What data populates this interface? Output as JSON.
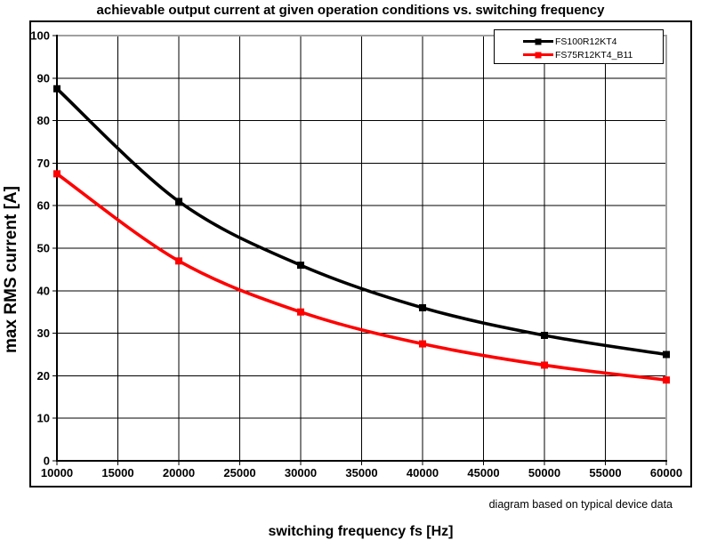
{
  "chart_data": {
    "type": "line",
    "title": "achievable output current at given operation conditions vs. switching frequency",
    "xlabel": "switching frequency fs [Hz]",
    "ylabel": "max RMS current [A]",
    "note": "diagram based on typical device data",
    "x": [
      10000,
      20000,
      30000,
      40000,
      50000,
      60000
    ],
    "series": [
      {
        "name": "FS100R12KT4",
        "color": "#000000",
        "values": [
          87.5,
          61,
          46,
          36,
          29.5,
          25
        ]
      },
      {
        "name": "FS75R12KT4_B11",
        "color": "#ff0000",
        "values": [
          67.5,
          47,
          35,
          27.5,
          22.5,
          19
        ]
      }
    ],
    "xlim": [
      10000,
      60000
    ],
    "ylim": [
      0,
      100
    ],
    "x_ticks": [
      10000,
      15000,
      20000,
      25000,
      30000,
      35000,
      40000,
      45000,
      50000,
      55000,
      60000
    ],
    "y_ticks": [
      0,
      10,
      20,
      30,
      40,
      50,
      60,
      70,
      80,
      90,
      100
    ],
    "grid": true,
    "legend_position": "top-right",
    "colors": {
      "grid": "#000000",
      "axis": "#000000",
      "plot_border": "#a0a0a0",
      "background": "#ffffff"
    }
  }
}
